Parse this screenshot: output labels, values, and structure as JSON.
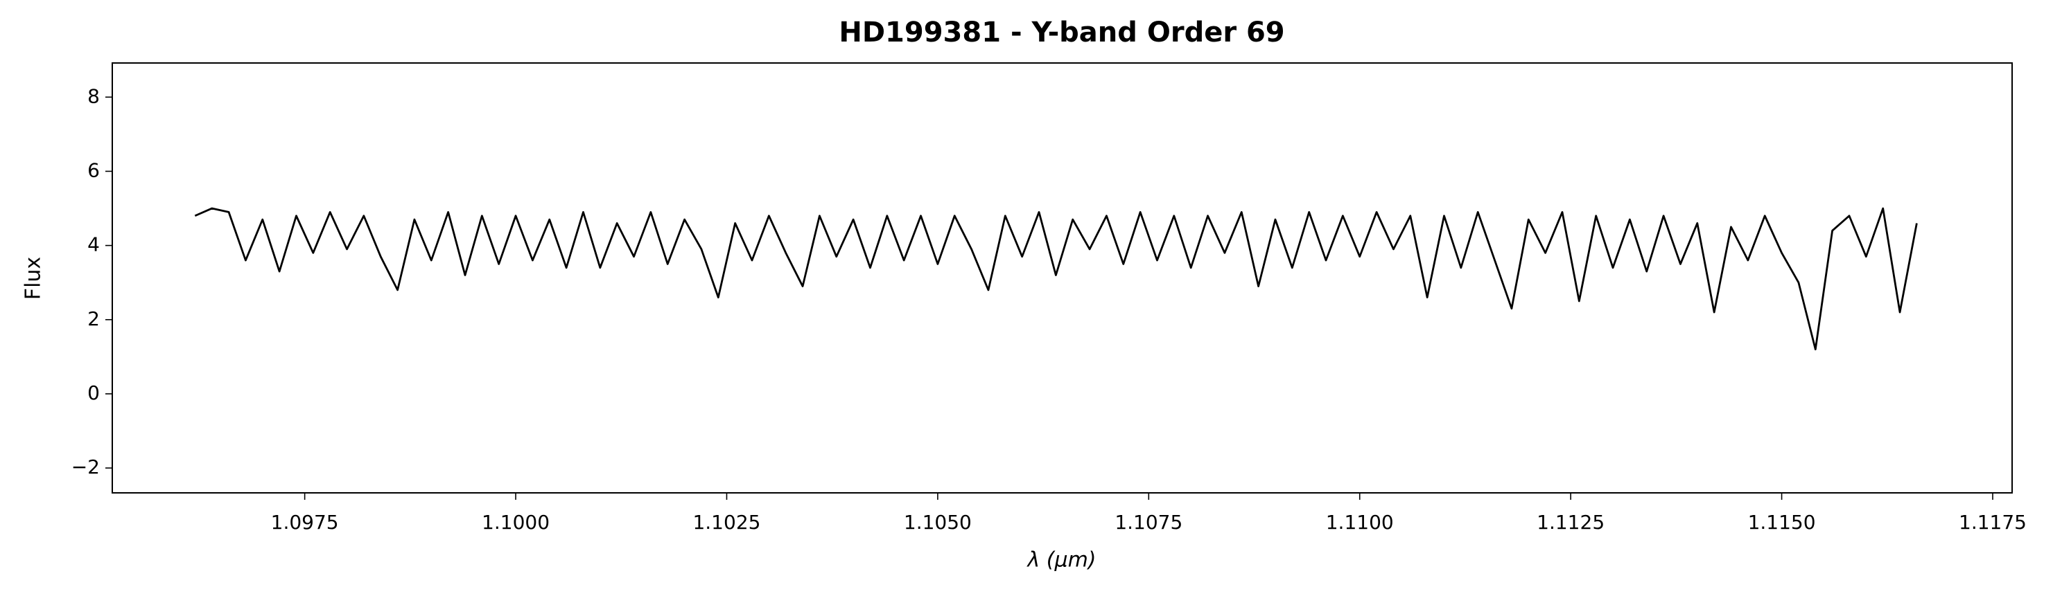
{
  "chart_data": {
    "type": "line",
    "title": "HD199381 - Y-band Order 69",
    "xlabel": "λ (μm)",
    "ylabel": "Flux",
    "color": "#000000",
    "xlim": [
      1.09522,
      1.11773
    ],
    "ylim": [
      -2.67,
      8.92
    ],
    "xticks": [
      1.0975,
      {
        "value": 1.1,
        "label": "1.1000"
      },
      1.1025,
      {
        "value": 1.105,
        "label": "1.1050"
      },
      1.1075,
      {
        "value": 1.11,
        "label": "1.1100"
      },
      1.1125,
      {
        "value": 1.115,
        "label": "1.1150"
      },
      1.1175
    ],
    "yticks": [
      {
        "value": -2,
        "label": "−2"
      },
      0,
      2,
      4,
      6,
      8
    ],
    "x": [
      1.0962,
      1.0964,
      1.0966,
      1.0968,
      1.097,
      1.0972,
      1.0974,
      1.0976,
      1.0978,
      1.098,
      1.0982,
      1.0984,
      1.0986,
      1.0988,
      1.099,
      1.0992,
      1.0994,
      1.0996,
      1.0998,
      1.1,
      1.1002,
      1.1004,
      1.1006,
      1.1008,
      1.101,
      1.1012,
      1.1014,
      1.1016,
      1.1018,
      1.102,
      1.1022,
      1.1024,
      1.1026,
      1.1028,
      1.103,
      1.1032,
      1.1034,
      1.1036,
      1.1038,
      1.104,
      1.1042,
      1.1044,
      1.1046,
      1.1048,
      1.105,
      1.1052,
      1.1054,
      1.1056,
      1.1058,
      1.106,
      1.1062,
      1.1064,
      1.1066,
      1.1068,
      1.107,
      1.1072,
      1.1074,
      1.1076,
      1.1078,
      1.108,
      1.1082,
      1.1084,
      1.1086,
      1.1088,
      1.109,
      1.1092,
      1.1094,
      1.1096,
      1.1098,
      1.11,
      1.1102,
      1.1104,
      1.1106,
      1.1108,
      1.111,
      1.1112,
      1.1114,
      1.1116,
      1.1118,
      1.112,
      1.1122,
      1.1124,
      1.1126,
      1.1128,
      1.113,
      1.1132,
      1.1134,
      1.1136,
      1.1138,
      1.114,
      1.1142,
      1.1144,
      1.1146,
      1.1148,
      1.115,
      1.1152,
      1.1154,
      1.1156,
      1.1158,
      1.116,
      1.1162,
      1.1164,
      1.1166
    ],
    "values": [
      4.8,
      5.0,
      4.9,
      3.6,
      4.7,
      3.3,
      4.8,
      3.8,
      4.9,
      3.9,
      4.8,
      3.7,
      2.8,
      4.7,
      3.6,
      4.9,
      3.2,
      4.8,
      3.5,
      4.8,
      3.6,
      4.7,
      3.4,
      4.9,
      3.4,
      4.6,
      3.7,
      4.9,
      3.5,
      4.7,
      3.9,
      2.6,
      4.6,
      3.6,
      4.8,
      3.8,
      2.9,
      4.8,
      3.7,
      4.7,
      3.4,
      4.8,
      3.6,
      4.8,
      3.5,
      4.8,
      3.9,
      2.8,
      4.8,
      3.7,
      4.9,
      3.2,
      4.7,
      3.9,
      4.8,
      3.5,
      4.9,
      3.6,
      4.8,
      3.4,
      4.8,
      3.8,
      4.9,
      2.9,
      4.7,
      3.4,
      4.9,
      3.6,
      4.8,
      3.7,
      4.9,
      3.9,
      4.8,
      2.6,
      4.8,
      3.4,
      4.9,
      3.6,
      2.3,
      4.7,
      3.8,
      4.9,
      2.5,
      4.8,
      3.4,
      4.7,
      3.3,
      4.8,
      3.5,
      4.6,
      2.2,
      4.5,
      3.6,
      4.8,
      3.8,
      3.0,
      1.2,
      4.4,
      4.8,
      3.7,
      5.0,
      2.2,
      4.6
    ]
  }
}
